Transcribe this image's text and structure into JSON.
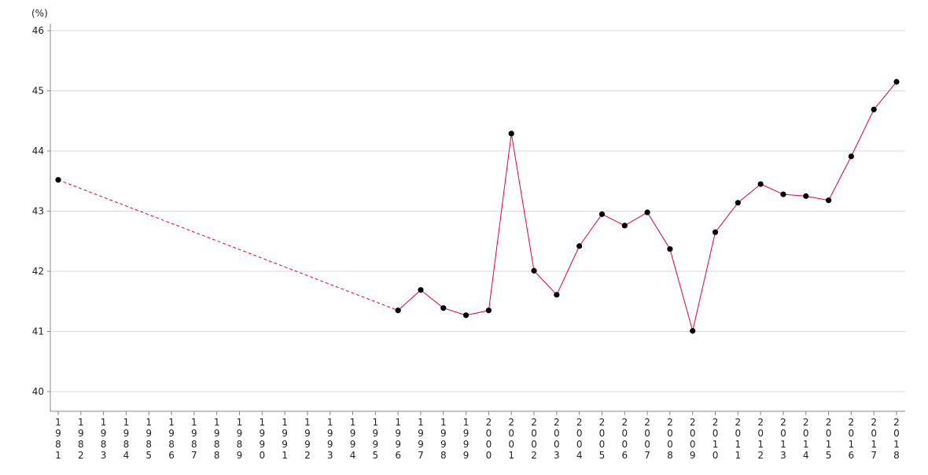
{
  "chart_data": {
    "type": "line",
    "title": "",
    "xlabel": "",
    "ylabel": "(%)",
    "ylim": [
      40,
      46
    ],
    "yticks": [
      40,
      41,
      42,
      43,
      44,
      45,
      46
    ],
    "grid": true,
    "line_color": "#e8003a",
    "marker_color": "#000000",
    "gap_style": "dashed",
    "x": [
      1981,
      1982,
      1983,
      1984,
      1985,
      1986,
      1987,
      1988,
      1989,
      1990,
      1991,
      1992,
      1993,
      1994,
      1995,
      1996,
      1997,
      1998,
      1999,
      2000,
      2001,
      2002,
      2003,
      2004,
      2005,
      2006,
      2007,
      2008,
      2009,
      2010,
      2011,
      2012,
      2013,
      2014,
      2015,
      2016,
      2017,
      2018
    ],
    "values": [
      43.52,
      null,
      null,
      null,
      null,
      null,
      null,
      null,
      null,
      null,
      null,
      null,
      null,
      null,
      null,
      41.35,
      41.69,
      41.39,
      41.27,
      41.35,
      44.29,
      42.01,
      41.61,
      42.42,
      42.95,
      42.76,
      42.98,
      42.37,
      41.01,
      42.65,
      43.14,
      43.45,
      43.28,
      43.25,
      43.18,
      43.91,
      44.69,
      45.15
    ]
  }
}
